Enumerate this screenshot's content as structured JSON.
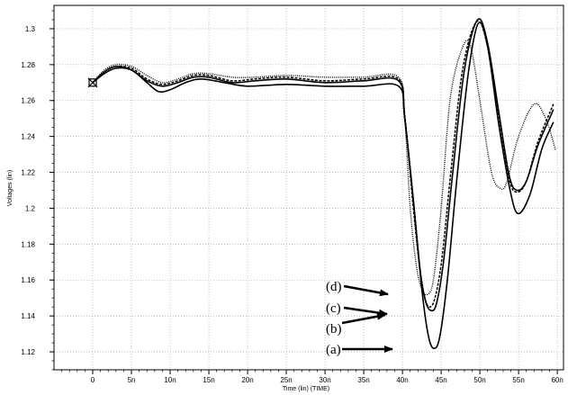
{
  "chart_data": {
    "type": "line",
    "title": "",
    "xlabel": "Time (lin) (TIME)",
    "ylabel": "Voltages (lin)",
    "xlim": [
      -5,
      60.8
    ],
    "ylim": [
      1.11,
      1.313
    ],
    "x_ticks": [
      0,
      5,
      10,
      15,
      20,
      25,
      30,
      35,
      40,
      45,
      50,
      55,
      60
    ],
    "x_tick_labels": [
      "0",
      "5n",
      "10n",
      "15n",
      "20n",
      "25n",
      "30n",
      "35n",
      "40n",
      "45n",
      "50n",
      "55n",
      "60n"
    ],
    "y_ticks": [
      1.12,
      1.14,
      1.16,
      1.18,
      1.2,
      1.22,
      1.24,
      1.26,
      1.28,
      1.3
    ],
    "y_tick_labels": [
      "1.12",
      "1.14",
      "1.16",
      "1.18",
      "1.2",
      "1.22",
      "1.24",
      "1.26",
      "1.28",
      "1.3"
    ],
    "grid": true,
    "annotations": [
      "(d)",
      "(c)",
      "(b)",
      "(a)"
    ],
    "series": [
      {
        "name": "(a)",
        "style": "solid",
        "x": [
          0,
          1.5,
          3,
          5,
          7,
          8.5,
          10,
          12,
          14,
          17,
          20,
          25,
          30,
          35,
          39.5,
          40.3,
          41.5,
          42.5,
          43.3,
          44,
          44.8,
          45.8,
          47,
          48.5,
          49.8,
          51,
          52.5,
          54,
          55,
          56.5,
          58,
          59.5
        ],
        "values": [
          1.27,
          1.275,
          1.278,
          1.277,
          1.27,
          1.265,
          1.266,
          1.27,
          1.272,
          1.27,
          1.268,
          1.269,
          1.268,
          1.268,
          1.268,
          1.25,
          1.2,
          1.155,
          1.13,
          1.122,
          1.128,
          1.16,
          1.215,
          1.275,
          1.303,
          1.29,
          1.245,
          1.208,
          1.197,
          1.208,
          1.233,
          1.248
        ]
      },
      {
        "name": "(b)",
        "style": "solid",
        "x": [
          0,
          1.5,
          3,
          5,
          7,
          9,
          11,
          13,
          15,
          18,
          21,
          25,
          30,
          35,
          39.5,
          40.3,
          41.4,
          42.3,
          43,
          43.7,
          44.4,
          45.3,
          46.5,
          48,
          49.7,
          51,
          52.5,
          53.8,
          54.8,
          56,
          57.5,
          59.5
        ],
        "values": [
          1.27,
          1.276,
          1.279,
          1.277,
          1.271,
          1.268,
          1.27,
          1.273,
          1.273,
          1.27,
          1.271,
          1.272,
          1.27,
          1.271,
          1.271,
          1.25,
          1.205,
          1.165,
          1.148,
          1.143,
          1.147,
          1.17,
          1.22,
          1.277,
          1.305,
          1.292,
          1.252,
          1.218,
          1.21,
          1.215,
          1.235,
          1.255
        ]
      },
      {
        "name": "(c)",
        "style": "dashed",
        "x": [
          0,
          1.5,
          3,
          5,
          7,
          9,
          11,
          13,
          15,
          18,
          21,
          25,
          30,
          35,
          39.5,
          40.3,
          41.3,
          42.2,
          42.9,
          43.5,
          44.2,
          45.1,
          46.3,
          47.8,
          49.6,
          51,
          52.5,
          53.8,
          54.8,
          56,
          57.5,
          59.5
        ],
        "values": [
          1.27,
          1.276,
          1.279,
          1.278,
          1.272,
          1.269,
          1.271,
          1.274,
          1.274,
          1.271,
          1.272,
          1.273,
          1.271,
          1.272,
          1.272,
          1.252,
          1.205,
          1.168,
          1.15,
          1.145,
          1.15,
          1.172,
          1.222,
          1.278,
          1.304,
          1.29,
          1.25,
          1.216,
          1.209,
          1.215,
          1.237,
          1.258
        ]
      },
      {
        "name": "(d)",
        "style": "dotted",
        "x": [
          0,
          1.5,
          3,
          5,
          7,
          9,
          11,
          13,
          15,
          18,
          21,
          25,
          30,
          35,
          39.5,
          40.3,
          41,
          41.8,
          42.5,
          43.2,
          44,
          45,
          46.2,
          47.8,
          48.8,
          50,
          51.5,
          52.7,
          53.5,
          55,
          57,
          58.5,
          59.8
        ],
        "values": [
          1.27,
          1.277,
          1.28,
          1.279,
          1.274,
          1.27,
          1.272,
          1.275,
          1.275,
          1.273,
          1.273,
          1.274,
          1.273,
          1.273,
          1.273,
          1.25,
          1.2,
          1.168,
          1.155,
          1.152,
          1.16,
          1.2,
          1.262,
          1.29,
          1.29,
          1.26,
          1.22,
          1.211,
          1.215,
          1.24,
          1.258,
          1.25,
          1.232
        ]
      }
    ]
  }
}
